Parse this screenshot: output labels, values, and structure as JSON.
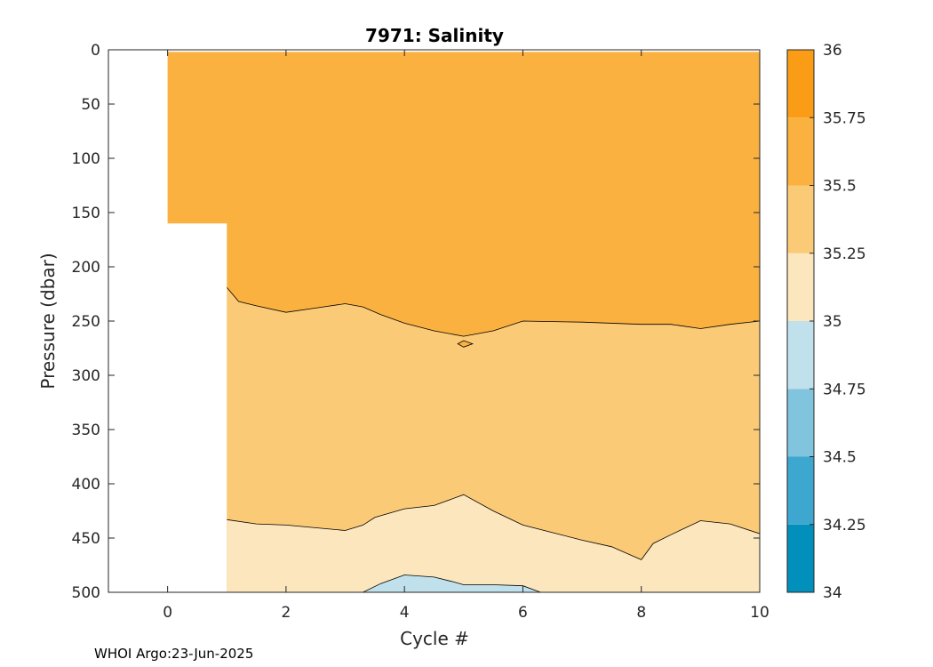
{
  "footer_text": "WHOI Argo:23-Jun-2025",
  "chart_data": {
    "type": "heatmap",
    "title": "7971:  Salinity",
    "xlabel": "Cycle #",
    "ylabel": "Pressure (dbar)",
    "xlim": [
      -1,
      10
    ],
    "ylim": [
      0,
      500
    ],
    "y_reversed": true,
    "xticks": [
      0,
      2,
      4,
      6,
      8,
      10
    ],
    "yticks": [
      0,
      50,
      100,
      150,
      200,
      250,
      300,
      350,
      400,
      450,
      500
    ],
    "grid": false,
    "colorbar": {
      "levels": [
        34,
        34.25,
        34.5,
        34.75,
        35,
        35.25,
        35.5,
        35.75,
        36
      ],
      "labels": [
        "34",
        "34.25",
        "34.5",
        "34.75",
        "35",
        "35.25",
        "35.5",
        "35.75",
        "36"
      ],
      "colors": [
        "#0090bb",
        "#3ea7cf",
        "#80c4de",
        "#c0e1ec",
        "#fce6bd",
        "#fbca77",
        "#fbb13f",
        "#fb9c16"
      ]
    },
    "data_region": [
      [
        0,
        2
      ],
      [
        0,
        160
      ],
      [
        1,
        160
      ],
      [
        1,
        500
      ],
      [
        10,
        500
      ],
      [
        10,
        2
      ]
    ],
    "contour_35_5": [
      [
        1,
        219
      ],
      [
        1.2,
        232
      ],
      [
        1.5,
        236
      ],
      [
        2,
        242
      ],
      [
        2.5,
        238
      ],
      [
        3,
        234
      ],
      [
        3.3,
        237
      ],
      [
        3.6,
        244
      ],
      [
        4,
        252
      ],
      [
        4.5,
        259
      ],
      [
        5,
        264
      ],
      [
        5.5,
        259
      ],
      [
        6,
        250
      ],
      [
        7,
        251
      ],
      [
        8,
        253
      ],
      [
        8.5,
        253
      ],
      [
        9,
        257
      ],
      [
        9.5,
        253
      ],
      [
        10,
        250
      ]
    ],
    "island_35_5": [
      [
        4.9,
        271
      ],
      [
        5,
        268
      ],
      [
        5.15,
        271
      ],
      [
        5,
        274
      ]
    ],
    "contour_35_25": [
      [
        1,
        433
      ],
      [
        1.5,
        437
      ],
      [
        2,
        438
      ],
      [
        3,
        443
      ],
      [
        3.3,
        438
      ],
      [
        3.5,
        431
      ],
      [
        4,
        423
      ],
      [
        4.5,
        420
      ],
      [
        5,
        410
      ],
      [
        5.5,
        425
      ],
      [
        6,
        438
      ],
      [
        6.5,
        445
      ],
      [
        7,
        452
      ],
      [
        7.5,
        458
      ],
      [
        8,
        470
      ],
      [
        8.2,
        455
      ],
      [
        8.5,
        447
      ],
      [
        9,
        434
      ],
      [
        9.5,
        437
      ],
      [
        10,
        446
      ]
    ],
    "contour_35": [
      [
        3.3,
        500
      ],
      [
        3.6,
        492
      ],
      [
        4,
        484
      ],
      [
        4.5,
        486
      ],
      [
        4.8,
        490
      ],
      [
        5,
        493
      ],
      [
        5.5,
        493
      ],
      [
        6,
        494
      ],
      [
        6.3,
        500
      ]
    ]
  }
}
